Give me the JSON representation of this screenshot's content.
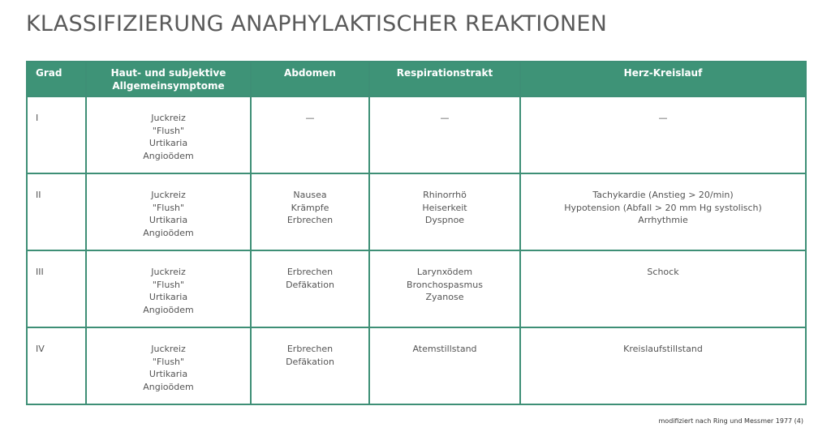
{
  "title": "KLASSIFIZIERUNG ANAPHYLAKTISCHER REAKTIONEN",
  "colors": {
    "header_bg": "#3e9377",
    "border": "#3e8f76",
    "text": "#555555"
  },
  "table": {
    "headers": [
      "Grad",
      "Haut- und subjektive Allgemeinsymptome",
      "Abdomen",
      "Respirationstrakt",
      "Herz-Kreislauf"
    ],
    "rows": [
      {
        "grad": "I",
        "haut": [
          "Juckreiz",
          "\"Flush\"",
          "Urtikaria",
          "Angioödem"
        ],
        "abdomen": [
          "—"
        ],
        "resp": [
          "—"
        ],
        "herz": [
          "—"
        ]
      },
      {
        "grad": "II",
        "haut": [
          "Juckreiz",
          "\"Flush\"",
          "Urtikaria",
          "Angioödem"
        ],
        "abdomen": [
          "Nausea",
          "Krämpfe",
          "Erbrechen"
        ],
        "resp": [
          "Rhinorrhö",
          "Heiserkeit",
          "Dyspnoe"
        ],
        "herz": [
          "Tachykardie (Anstieg > 20/min)",
          "Hypotension (Abfall > 20 mm Hg systolisch)",
          "Arrhythmie"
        ]
      },
      {
        "grad": "III",
        "haut": [
          "Juckreiz",
          "\"Flush\"",
          "Urtikaria",
          "Angioödem"
        ],
        "abdomen": [
          "Erbrechen",
          "Defäkation"
        ],
        "resp": [
          "Larynxödem",
          "Bronchospasmus",
          "Zyanose"
        ],
        "herz": [
          "Schock"
        ]
      },
      {
        "grad": "IV",
        "haut": [
          "Juckreiz",
          "\"Flush\"",
          "Urtikaria",
          "Angioödem"
        ],
        "abdomen": [
          "Erbrechen",
          "Defäkation"
        ],
        "resp": [
          "Atemstillstand"
        ],
        "herz": [
          "Kreislaufstillstand"
        ]
      }
    ]
  },
  "footnote": "modifiziert nach Ring und Messmer 1977 (4)"
}
